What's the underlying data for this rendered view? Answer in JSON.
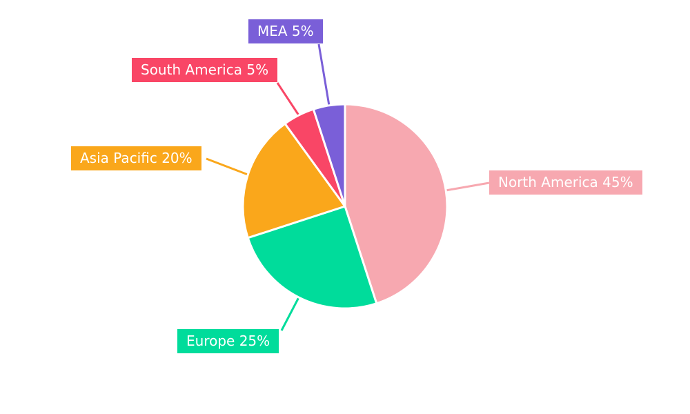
{
  "chart_data": {
    "type": "pie",
    "title": "",
    "categories": [
      "North America",
      "Europe",
      "Asia Pacific",
      "South America",
      "MEA"
    ],
    "values": [
      45,
      25,
      20,
      5,
      5
    ],
    "unit": "%",
    "legend_position": "outside-callout-boxes",
    "slices": [
      {
        "id": "north-america",
        "label": "North America",
        "value": 45,
        "display": "North America 45%",
        "color": "#F7A8B0",
        "box": [
          709,
          247
        ],
        "line": [
          646,
          276,
          709,
          265
        ]
      },
      {
        "id": "europe",
        "label": "Europe",
        "value": 25,
        "display": "Europe 25%",
        "color": "#00DC9B",
        "box": [
          257,
          477
        ],
        "line": [
          433,
          431,
          408,
          479
        ]
      },
      {
        "id": "asia-pacific",
        "label": "Asia Pacific",
        "value": 20,
        "display": "Asia Pacific 20%",
        "color": "#FAA71B",
        "box": [
          103,
          212
        ],
        "line": [
          359,
          253,
          299,
          230
        ]
      },
      {
        "id": "south-america",
        "label": "South America",
        "value": 5,
        "display": "South America 5%",
        "color": "#F94666",
        "box": [
          191,
          84
        ],
        "line": [
          433,
          167,
          402,
          120
        ]
      },
      {
        "id": "mea",
        "label": "MEA",
        "value": 5,
        "display": "MEA 5%",
        "color": "#7A5FD8",
        "box": [
          360,
          28
        ],
        "line": [
          477,
          153,
          462,
          64
        ]
      }
    ],
    "layout": {
      "center": [
        500,
        299
      ],
      "radius": 148,
      "start_angle_deg_from_top": 0,
      "direction": "clockwise",
      "slice_gap_stroke": "#ffffff",
      "background": "#ffffff"
    }
  }
}
